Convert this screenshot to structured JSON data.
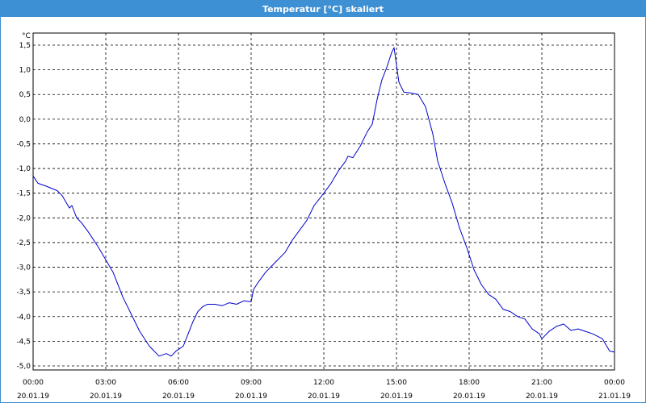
{
  "window": {
    "title": "Temperatur [°C] skaliert"
  },
  "colors": {
    "titlebar": "#3d90d3",
    "line": "#0000cc",
    "grid": "#000000"
  },
  "chart_data": {
    "type": "line",
    "title": "Temperatur [°C] skaliert",
    "ylabel": "°C",
    "xlabel": "",
    "ylim": [
      -5.0,
      1.5
    ],
    "xlim": [
      0,
      24
    ],
    "y_ticks": [
      "1,5",
      "1,0",
      "0,5",
      "0,0",
      "-0,5",
      "-1,0",
      "-1,5",
      "-2,0",
      "-2,5",
      "-3,0",
      "-3,5",
      "-4,0",
      "-4,5",
      "-5,0"
    ],
    "y_tick_values": [
      1.5,
      1.0,
      0.5,
      0.0,
      -0.5,
      -1.0,
      -1.5,
      -2.0,
      -2.5,
      -3.0,
      -3.5,
      -4.0,
      -4.5,
      -5.0
    ],
    "x_ticks": [
      {
        "hour": 0,
        "time": "00:00",
        "date": "20.01.19"
      },
      {
        "hour": 3,
        "time": "03:00",
        "date": "20.01.19"
      },
      {
        "hour": 6,
        "time": "06:00",
        "date": "20.01.19"
      },
      {
        "hour": 9,
        "time": "09:00",
        "date": "20.01.19"
      },
      {
        "hour": 12,
        "time": "12:00",
        "date": "20.01.19"
      },
      {
        "hour": 15,
        "time": "15:00",
        "date": "20.01.19"
      },
      {
        "hour": 18,
        "time": "18:00",
        "date": "20.01.19"
      },
      {
        "hour": 21,
        "time": "21:00",
        "date": "20.01.19"
      },
      {
        "hour": 24,
        "time": "00:00",
        "date": "21.01.19"
      }
    ],
    "grid": true,
    "series": [
      {
        "x": [
          0,
          0.2,
          0.5,
          1.0,
          1.2,
          1.5,
          1.6,
          1.8,
          2.0,
          2.3,
          2.7,
          3.0,
          3.3,
          3.7,
          4.0,
          4.4,
          4.8,
          5.2,
          5.5,
          5.7,
          5.9,
          6.2,
          6.4,
          6.6,
          6.8,
          7.0,
          7.2,
          7.5,
          7.8,
          8.1,
          8.4,
          8.7,
          9.0,
          9.1,
          9.3,
          9.6,
          10.0,
          10.4,
          10.7,
          11.0,
          11.3,
          11.6,
          12.0,
          12.3,
          12.6,
          12.9,
          13.0,
          13.2,
          13.5,
          13.8,
          14.0,
          14.2,
          14.4,
          14.6,
          14.8,
          14.9,
          15.1,
          15.3,
          15.6,
          15.9,
          16.2,
          16.5,
          16.7,
          17.0,
          17.3,
          17.6,
          17.9,
          18.2,
          18.5,
          18.8,
          19.1,
          19.4,
          19.7,
          20.0,
          20.3,
          20.6,
          20.9,
          21.0,
          21.3,
          21.6,
          21.9,
          22.2,
          22.5,
          22.8,
          23.1,
          23.5,
          23.8,
          24.0
        ],
        "y": [
          -1.15,
          -1.3,
          -1.35,
          -1.45,
          -1.55,
          -1.8,
          -1.75,
          -2.0,
          -2.1,
          -2.3,
          -2.6,
          -2.85,
          -3.1,
          -3.6,
          -3.9,
          -4.3,
          -4.6,
          -4.8,
          -4.75,
          -4.8,
          -4.7,
          -4.6,
          -4.35,
          -4.1,
          -3.9,
          -3.8,
          -3.75,
          -3.75,
          -3.78,
          -3.72,
          -3.75,
          -3.68,
          -3.7,
          -3.45,
          -3.3,
          -3.1,
          -2.9,
          -2.7,
          -2.45,
          -2.25,
          -2.05,
          -1.75,
          -1.5,
          -1.3,
          -1.05,
          -0.85,
          -0.75,
          -0.78,
          -0.55,
          -0.25,
          -0.1,
          0.4,
          0.8,
          1.05,
          1.35,
          1.45,
          0.75,
          0.55,
          0.53,
          0.5,
          0.25,
          -0.3,
          -0.85,
          -1.3,
          -1.7,
          -2.2,
          -2.6,
          -3.05,
          -3.35,
          -3.55,
          -3.65,
          -3.85,
          -3.9,
          -4.0,
          -4.05,
          -4.25,
          -4.35,
          -4.45,
          -4.3,
          -4.2,
          -4.15,
          -4.28,
          -4.25,
          -4.3,
          -4.35,
          -4.45,
          -4.7,
          -4.72
        ]
      }
    ]
  }
}
